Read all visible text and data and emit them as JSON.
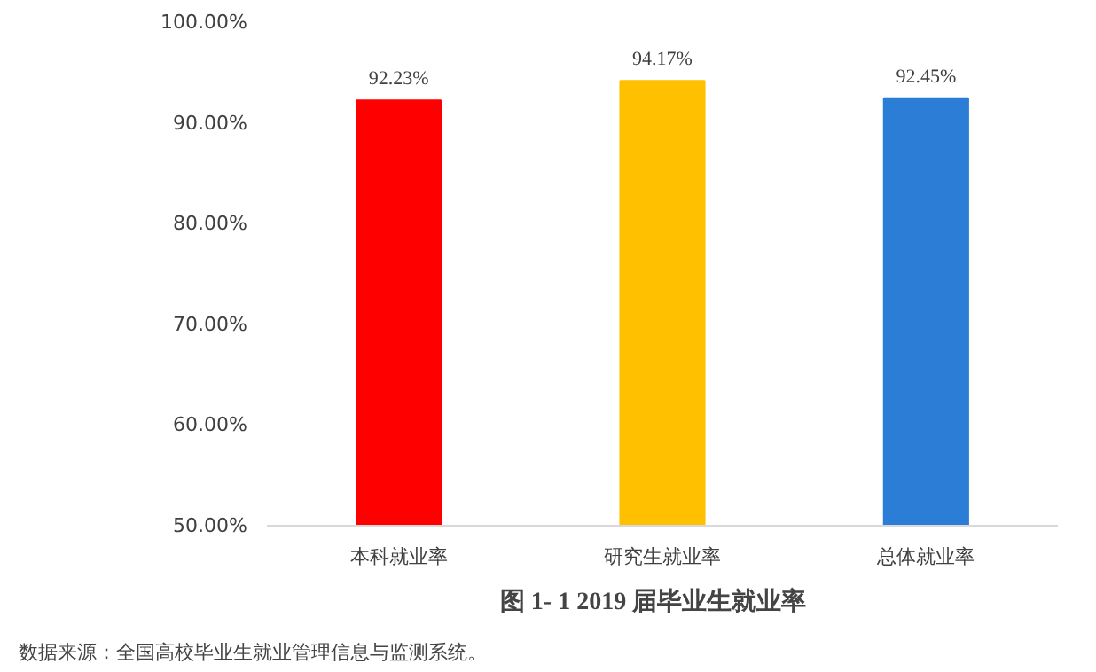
{
  "chart_data": {
    "type": "bar",
    "title": "图 1- 1    2019 届毕业生就业率",
    "categories": [
      "本科就业率",
      "研究生就业率",
      "总体就业率"
    ],
    "values": [
      92.23,
      94.17,
      92.45
    ],
    "colors": [
      "#ff0000",
      "#ffc000",
      "#2b7dd6"
    ],
    "value_labels": [
      "92.23%",
      "94.17%",
      "92.45%"
    ],
    "ylim": [
      50,
      100
    ],
    "yticks": [
      {
        "value": 50,
        "label": "50.00%"
      },
      {
        "value": 60,
        "label": "60.00%"
      },
      {
        "value": 70,
        "label": "70.00%"
      },
      {
        "value": 80,
        "label": "80.00%"
      },
      {
        "value": 90,
        "label": "90.00%"
      },
      {
        "value": 100,
        "label": "100.00%"
      }
    ],
    "grid": false,
    "annotations": [
      "数据来源：全国高校毕业生就业管理信息与监测系统。"
    ]
  }
}
